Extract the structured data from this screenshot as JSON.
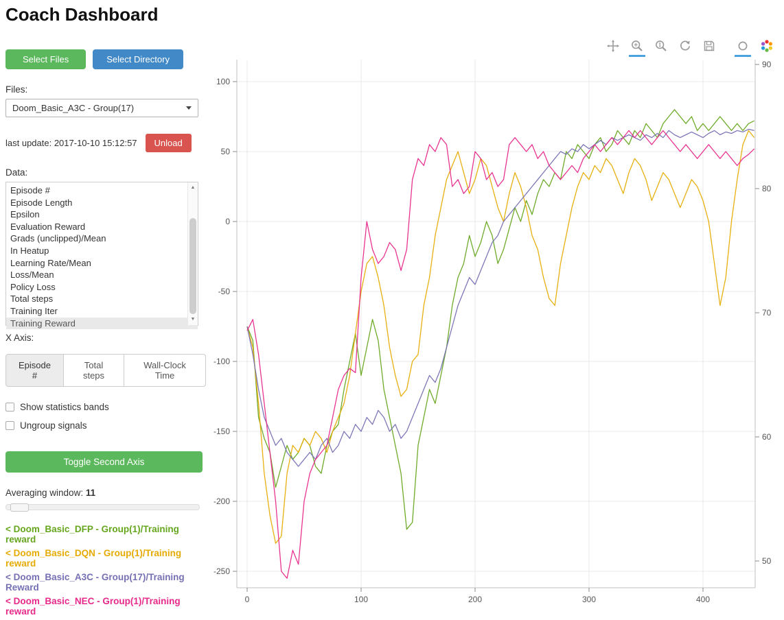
{
  "title": "Coach Dashboard",
  "sidebar": {
    "select_files": "Select Files",
    "select_directory": "Select Directory",
    "files_label": "Files:",
    "files_selected": "Doom_Basic_A3C - Group(17)",
    "last_update": "last update: 2017-10-10 15:12:57",
    "unload": "Unload",
    "data_label": "Data:",
    "data_items": [
      "Episode #",
      "Episode Length",
      "Epsilon",
      "Evaluation Reward",
      "Grads (unclipped)/Mean",
      "In Heatup",
      "Learning Rate/Mean",
      "Loss/Mean",
      "Policy Loss",
      "Total steps",
      "Training Iter",
      "Training Reward"
    ],
    "data_selected": "Training Reward",
    "x_axis_label": "X Axis:",
    "x_axis_options": [
      "Episode #",
      "Total steps",
      "Wall-Clock Time"
    ],
    "x_axis_selected": "Episode #",
    "checkboxes": [
      {
        "label": "Show statistics bands",
        "checked": false
      },
      {
        "label": "Ungroup signals",
        "checked": false
      }
    ],
    "toggle_second_axis": "Toggle Second Axis",
    "averaging_label": "Averaging window:",
    "averaging_value": "11",
    "legend": [
      {
        "label": "< Doom_Basic_DFP - Group(1)/Training reward",
        "color": "#66a61e"
      },
      {
        "label": "< Doom_Basic_DQN - Group(1)/Training reward",
        "color": "#e6ab02"
      },
      {
        "label": "< Doom_Basic_A3C - Group(17)/Training Reward",
        "color": "#7570b3"
      },
      {
        "label": "< Doom_Basic_NEC - Group(1)/Training reward",
        "color": "#e7298a"
      }
    ]
  },
  "toolbar": {
    "icons": [
      "pan-icon",
      "box-zoom-icon",
      "wheel-zoom-icon",
      "reset-icon",
      "save-icon",
      "hover-icon",
      "bokeh-logo-icon"
    ],
    "active_tools": [
      "box-zoom",
      "hover"
    ],
    "active_color": "#4aa3df"
  },
  "chart_data": {
    "type": "line",
    "title": "",
    "xlabel": "",
    "ylabel": "",
    "grid": true,
    "x_ticks": [
      0,
      100,
      200,
      300,
      400
    ],
    "y_left_ticks": [
      100,
      50,
      0,
      -50,
      -100,
      -150,
      -200,
      -250
    ],
    "y_right_ticks": [
      90,
      80,
      70,
      60,
      50
    ],
    "xlim": [
      -9,
      446
    ],
    "ylim_left": [
      -262,
      116
    ],
    "ylim_right": [
      48.5,
      90.5
    ],
    "x_step": 5,
    "series": [
      {
        "name": "Doom_Basic_DFP - Group(1)/Training reward",
        "short": "DFP",
        "color": "#66a61e",
        "values": [
          -75,
          -85,
          -140,
          -155,
          -165,
          -190,
          -175,
          -160,
          -170,
          -165,
          -155,
          -160,
          -175,
          -180,
          -160,
          -150,
          -145,
          -120,
          -100,
          -80,
          -110,
          -90,
          -70,
          -85,
          -120,
          -140,
          -160,
          -180,
          -220,
          -215,
          -160,
          -140,
          -120,
          -130,
          -110,
          -90,
          -60,
          -40,
          -30,
          -10,
          -25,
          -15,
          0,
          -10,
          -30,
          -20,
          -5,
          10,
          0,
          15,
          5,
          20,
          30,
          25,
          35,
          30,
          50,
          45,
          55,
          50,
          45,
          55,
          60,
          50,
          55,
          65,
          60,
          55,
          65,
          60,
          70,
          65,
          60,
          70,
          75,
          80,
          75,
          70,
          75,
          65,
          70,
          65,
          70,
          75,
          70,
          65,
          70,
          65,
          70,
          72
        ]
      },
      {
        "name": "Doom_Basic_DQN - Group(1)/Training reward",
        "short": "DQN",
        "color": "#e6ab02",
        "values": [
          -75,
          -90,
          -130,
          -180,
          -210,
          -230,
          -225,
          -180,
          -160,
          -165,
          -155,
          -160,
          -150,
          -155,
          -165,
          -150,
          -140,
          -130,
          -110,
          -80,
          -50,
          -30,
          -25,
          -40,
          -60,
          -90,
          -110,
          -125,
          -120,
          -100,
          -95,
          -60,
          -40,
          -10,
          10,
          30,
          40,
          50,
          35,
          20,
          30,
          45,
          40,
          25,
          10,
          0,
          20,
          35,
          25,
          10,
          -10,
          -20,
          -40,
          -55,
          -60,
          -30,
          -10,
          10,
          25,
          35,
          30,
          40,
          35,
          45,
          40,
          30,
          20,
          35,
          45,
          40,
          30,
          15,
          25,
          35,
          30,
          20,
          10,
          20,
          30,
          25,
          15,
          0,
          -30,
          -60,
          -40,
          0,
          30,
          55,
          65,
          60
        ]
      },
      {
        "name": "Doom_Basic_A3C - Group(17)/Training Reward",
        "short": "A3C",
        "color": "#7570b3",
        "values": [
          -75,
          -95,
          -120,
          -140,
          -150,
          -160,
          -155,
          -165,
          -170,
          -175,
          -170,
          -165,
          -170,
          -160,
          -155,
          -165,
          -160,
          -150,
          -155,
          -145,
          -150,
          -140,
          -145,
          -135,
          -140,
          -150,
          -145,
          -155,
          -150,
          -140,
          -130,
          -120,
          -110,
          -115,
          -105,
          -90,
          -75,
          -60,
          -50,
          -40,
          -45,
          -35,
          -25,
          -15,
          -10,
          0,
          5,
          10,
          15,
          20,
          25,
          30,
          35,
          40,
          45,
          50,
          48,
          52,
          50,
          55,
          52,
          55,
          58,
          55,
          60,
          58,
          60,
          62,
          60,
          58,
          62,
          60,
          63,
          60,
          65,
          62,
          60,
          62,
          64,
          62,
          60,
          63,
          65,
          62,
          64,
          63,
          65,
          64,
          66,
          65
        ]
      },
      {
        "name": "Doom_Basic_NEC - Group(1)/Training reward",
        "short": "NEC",
        "color": "#e7298a",
        "values": [
          -78,
          -70,
          -95,
          -130,
          -165,
          -200,
          -250,
          -255,
          -235,
          -245,
          -200,
          -180,
          -170,
          -165,
          -160,
          -140,
          -120,
          -110,
          -105,
          -108,
          -40,
          0,
          -20,
          -30,
          -25,
          -15,
          -20,
          -35,
          -20,
          30,
          45,
          40,
          55,
          50,
          60,
          55,
          25,
          30,
          20,
          25,
          50,
          45,
          30,
          35,
          25,
          30,
          55,
          60,
          55,
          50,
          55,
          45,
          50,
          40,
          35,
          30,
          35,
          40,
          35,
          45,
          50,
          55,
          50,
          55,
          60,
          55,
          60,
          65,
          60,
          65,
          60,
          55,
          60,
          65,
          60,
          55,
          50,
          55,
          50,
          45,
          50,
          55,
          50,
          45,
          50,
          45,
          40,
          45,
          48,
          52
        ]
      }
    ]
  }
}
